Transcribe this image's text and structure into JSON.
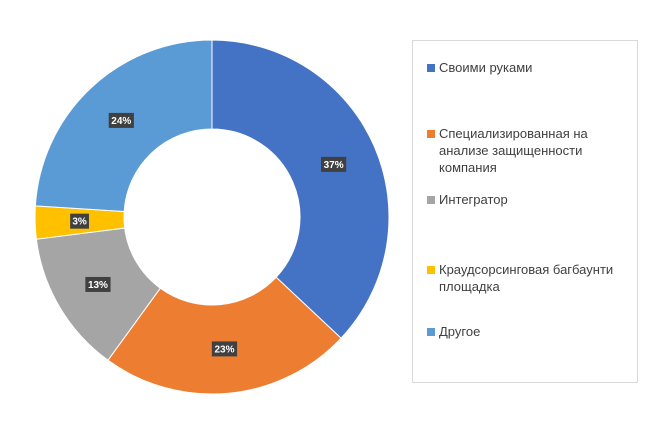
{
  "chart_data": {
    "type": "pie",
    "style": "donut",
    "title": "",
    "categories": [
      "Своими руками",
      "Специализированная на анализе защищенности компания",
      "Интегратор",
      "Краудсорсинговая багбаунти площадка",
      "Другое"
    ],
    "values": [
      37,
      23,
      13,
      3,
      24
    ],
    "labels": [
      "37%",
      "23%",
      "13%",
      "3%",
      "24%"
    ],
    "colors": [
      "#4472C4",
      "#ED7D31",
      "#A5A5A5",
      "#FFC000",
      "#5B9BD5"
    ],
    "legend_position": "right"
  }
}
